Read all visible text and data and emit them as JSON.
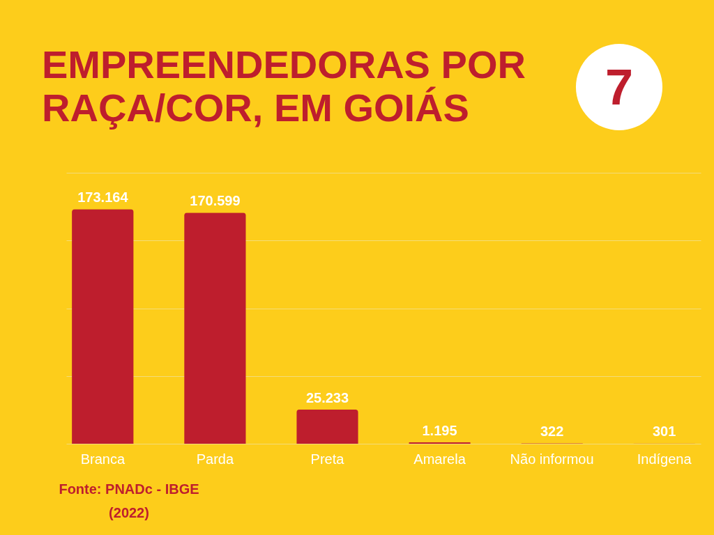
{
  "chart_data": {
    "type": "bar",
    "title": "EMPREENDEDORAS POR RAÇA/COR, EM GOIÁS",
    "categories": [
      "Branca",
      "Parda",
      "Preta",
      "Amarela",
      "Não informou",
      "Indígena"
    ],
    "values": [
      173164,
      170599,
      25233,
      1195,
      322,
      301
    ],
    "value_labels": [
      "173.164",
      "170.599",
      "25.233",
      "1.195",
      "322",
      "301"
    ],
    "color": "#be1e2d",
    "ylim": [
      0,
      200000
    ],
    "yticks": [
      {
        "value": 0,
        "label": null
      },
      {
        "value": 50000,
        "label": null
      },
      {
        "value": 100000,
        "label": null
      },
      {
        "value": 150000,
        "label": null
      },
      {
        "value": 200000,
        "label": null
      }
    ],
    "grid": "y",
    "tick_labels": "x",
    "annotations": [
      "7",
      "Fonte: PNADc - IBGE (2022)"
    ]
  }
}
